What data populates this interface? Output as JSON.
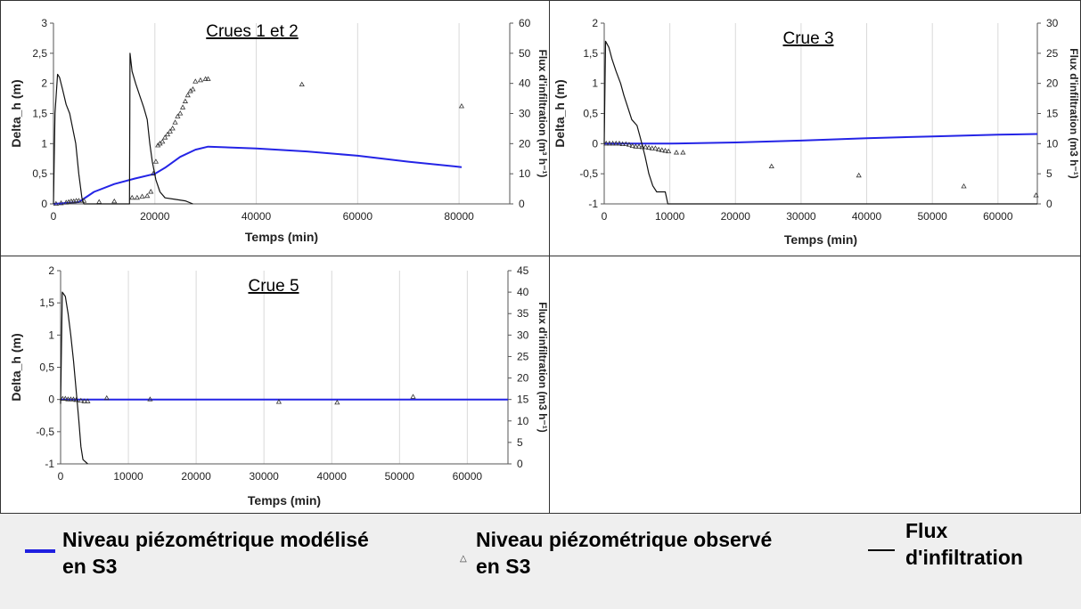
{
  "chart_data": [
    {
      "type": "line",
      "title": "Crues 1 et 2",
      "xlabel": "Temps (min)",
      "ylabel": "Delta_h (m)",
      "y2label": "Flux d'infiltration (m³ h⁻¹)",
      "xlim": [
        0,
        90000
      ],
      "ylim": [
        0,
        3
      ],
      "y2lim": [
        0,
        60
      ],
      "xticks": [
        0,
        20000,
        40000,
        60000,
        80000
      ],
      "yticks": [
        "0",
        "0,5",
        "1",
        "1,5",
        "2",
        "2,5",
        "3"
      ],
      "y2ticks": [
        "0",
        "10",
        "20",
        "30",
        "40",
        "50",
        "60"
      ],
      "series": [
        {
          "name": "Niveau piézométrique modélisé en S3",
          "axis": "left",
          "points": [
            [
              0,
              0
            ],
            [
              5000,
              0.03
            ],
            [
              8000,
              0.2
            ],
            [
              12000,
              0.33
            ],
            [
              16000,
              0.42
            ],
            [
              20000,
              0.5
            ],
            [
              22000,
              0.6
            ],
            [
              25000,
              0.78
            ],
            [
              28000,
              0.9
            ],
            [
              30500,
              0.95
            ],
            [
              40000,
              0.92
            ],
            [
              50000,
              0.87
            ],
            [
              60000,
              0.8
            ],
            [
              70000,
              0.7
            ],
            [
              80500,
              0.61
            ]
          ]
        },
        {
          "name": "Niveau piézométrique observé en S3",
          "axis": "left",
          "points": [
            [
              500,
              0.0
            ],
            [
              1500,
              0.01
            ],
            [
              2500,
              0.02
            ],
            [
              3000,
              0.03
            ],
            [
              3500,
              0.04
            ],
            [
              4000,
              0.04
            ],
            [
              4500,
              0.05
            ],
            [
              5000,
              0.05
            ],
            [
              6000,
              0.05
            ],
            [
              9000,
              0.03
            ],
            [
              12000,
              0.04
            ],
            [
              15500,
              0.1
            ],
            [
              16500,
              0.1
            ],
            [
              17500,
              0.12
            ],
            [
              18500,
              0.13
            ],
            [
              19200,
              0.2
            ],
            [
              19700,
              0.5
            ],
            [
              20200,
              0.7
            ],
            [
              20600,
              0.97
            ],
            [
              21000,
              1.0
            ],
            [
              21500,
              1.03
            ],
            [
              22000,
              1.1
            ],
            [
              22500,
              1.15
            ],
            [
              23000,
              1.2
            ],
            [
              23500,
              1.25
            ],
            [
              24000,
              1.35
            ],
            [
              24500,
              1.45
            ],
            [
              25000,
              1.5
            ],
            [
              25500,
              1.6
            ],
            [
              26000,
              1.7
            ],
            [
              26500,
              1.8
            ],
            [
              27000,
              1.87
            ],
            [
              27500,
              1.9
            ],
            [
              28000,
              2.03
            ],
            [
              29000,
              2.05
            ],
            [
              30000,
              2.07
            ],
            [
              30500,
              2.07
            ],
            [
              49000,
              1.98
            ],
            [
              80500,
              1.62
            ]
          ]
        },
        {
          "name": "Flux d'infiltration",
          "axis": "right",
          "points": [
            [
              0,
              0
            ],
            [
              300,
              30
            ],
            [
              800,
              43
            ],
            [
              1200,
              42
            ],
            [
              1800,
              38
            ],
            [
              2500,
              33
            ],
            [
              3200,
              30
            ],
            [
              3800,
              25
            ],
            [
              4400,
              20
            ],
            [
              5000,
              10
            ],
            [
              5600,
              2
            ],
            [
              6000,
              0
            ],
            [
              15000,
              0
            ],
            [
              15100,
              50
            ],
            [
              15500,
              44
            ],
            [
              16200,
              40
            ],
            [
              17000,
              36
            ],
            [
              17800,
              32
            ],
            [
              18500,
              28
            ],
            [
              19000,
              20
            ],
            [
              19500,
              14
            ],
            [
              20200,
              8
            ],
            [
              21000,
              4
            ],
            [
              22000,
              2
            ],
            [
              24000,
              1.5
            ],
            [
              26000,
              1
            ],
            [
              27500,
              0
            ]
          ]
        }
      ]
    },
    {
      "type": "line",
      "title": "Crue 3",
      "xlabel": "Temps  (min)",
      "ylabel": "Delta_h (m)",
      "y2label": "Flux d'infiltration (m3 h⁻¹)",
      "xlim": [
        0,
        66000
      ],
      "ylim": [
        -1,
        2
      ],
      "y2lim": [
        0,
        30
      ],
      "xticks": [
        0,
        10000,
        20000,
        30000,
        40000,
        50000,
        60000
      ],
      "yticks": [
        "-1",
        "-0,5",
        "0",
        "0,5",
        "1",
        "1,5",
        "2"
      ],
      "y2ticks": [
        "0",
        "5",
        "10",
        "15",
        "20",
        "25",
        "30"
      ],
      "series": [
        {
          "name": "Niveau piézométrique modélisé en S3",
          "axis": "left",
          "points": [
            [
              0,
              0
            ],
            [
              5000,
              0
            ],
            [
              10000,
              0
            ],
            [
              20000,
              0.02
            ],
            [
              30000,
              0.05
            ],
            [
              40000,
              0.09
            ],
            [
              50000,
              0.12
            ],
            [
              60000,
              0.15
            ],
            [
              66000,
              0.16
            ]
          ]
        },
        {
          "name": "Niveau piézométrique observé en S3",
          "axis": "left",
          "points": [
            [
              300,
              0
            ],
            [
              800,
              0
            ],
            [
              1300,
              0
            ],
            [
              1800,
              0
            ],
            [
              2300,
              0
            ],
            [
              2800,
              -0.01
            ],
            [
              3300,
              -0.01
            ],
            [
              3800,
              -0.02
            ],
            [
              4300,
              -0.04
            ],
            [
              4800,
              -0.05
            ],
            [
              5300,
              -0.05
            ],
            [
              5800,
              -0.06
            ],
            [
              6300,
              -0.06
            ],
            [
              6800,
              -0.07
            ],
            [
              7300,
              -0.08
            ],
            [
              7800,
              -0.08
            ],
            [
              8300,
              -0.1
            ],
            [
              8800,
              -0.11
            ],
            [
              9300,
              -0.12
            ],
            [
              9800,
              -0.13
            ],
            [
              11000,
              -0.15
            ],
            [
              12000,
              -0.15
            ],
            [
              25500,
              -0.38
            ],
            [
              38800,
              -0.53
            ],
            [
              54800,
              -0.71
            ],
            [
              65800,
              -0.86
            ]
          ]
        },
        {
          "name": "Flux d'infiltration",
          "axis": "right",
          "points": [
            [
              0,
              10
            ],
            [
              200,
              27
            ],
            [
              700,
              26
            ],
            [
              1200,
              24
            ],
            [
              1800,
              22
            ],
            [
              2500,
              20
            ],
            [
              3000,
              18
            ],
            [
              3600,
              16
            ],
            [
              4200,
              14
            ],
            [
              5000,
              13
            ],
            [
              5500,
              11
            ],
            [
              6200,
              8
            ],
            [
              6800,
              5
            ],
            [
              7400,
              3
            ],
            [
              8000,
              2
            ],
            [
              9300,
              2
            ],
            [
              9700,
              0
            ],
            [
              66000,
              0
            ]
          ]
        }
      ]
    },
    {
      "type": "line",
      "title": "Crue 5",
      "xlabel": "Temps (min)",
      "ylabel": "Delta_h (m)",
      "y2label": "Flux d'infiltration (m3 h⁻¹)",
      "xlim": [
        0,
        66000
      ],
      "ylim": [
        -1,
        2
      ],
      "y2lim": [
        0,
        45
      ],
      "xticks": [
        0,
        10000,
        20000,
        30000,
        40000,
        50000,
        60000
      ],
      "yticks": [
        "-1",
        "-0,5",
        "0",
        "0,5",
        "1",
        "1,5",
        "2"
      ],
      "y2ticks": [
        "0",
        "5",
        "10",
        "15",
        "20",
        "25",
        "30",
        "35",
        "40",
        "45"
      ],
      "series": [
        {
          "name": "Niveau piézométrique modélisé en S3",
          "axis": "left",
          "points": [
            [
              0,
              0
            ],
            [
              66000,
              0
            ]
          ]
        },
        {
          "name": "Niveau piézométrique observé en S3",
          "axis": "left",
          "points": [
            [
              300,
              0.01
            ],
            [
              700,
              0.01
            ],
            [
              1100,
              0.0
            ],
            [
              1500,
              0.0
            ],
            [
              1900,
              0.0
            ],
            [
              2300,
              -0.01
            ],
            [
              3000,
              -0.02
            ],
            [
              3500,
              -0.03
            ],
            [
              4000,
              -0.03
            ],
            [
              6800,
              0.02
            ],
            [
              13200,
              0.0
            ],
            [
              32200,
              -0.04
            ],
            [
              40800,
              -0.05
            ],
            [
              52000,
              0.04
            ]
          ]
        },
        {
          "name": "Flux d'infiltration",
          "axis": "right",
          "points": [
            [
              0,
              14
            ],
            [
              250,
              40
            ],
            [
              700,
              39
            ],
            [
              1100,
              35
            ],
            [
              1500,
              30
            ],
            [
              1900,
              24
            ],
            [
              2300,
              17
            ],
            [
              2700,
              10
            ],
            [
              3000,
              4
            ],
            [
              3300,
              1
            ],
            [
              4000,
              0
            ]
          ]
        }
      ]
    }
  ],
  "legend": {
    "modeled_label": "Niveau piézométrique modélisé\nen S3",
    "observed_label": "Niveau piézométrique observé\nen S3",
    "flux_label": "Flux\nd'infiltration",
    "observed_marker": "triangle-marker-icon",
    "modeled_color": "#1f1fe0",
    "flux_color": "#000000"
  },
  "colors": {
    "modeled": "#2424e6",
    "observed": "#333333",
    "flux": "#111111",
    "grid": "#d9d9d9"
  }
}
